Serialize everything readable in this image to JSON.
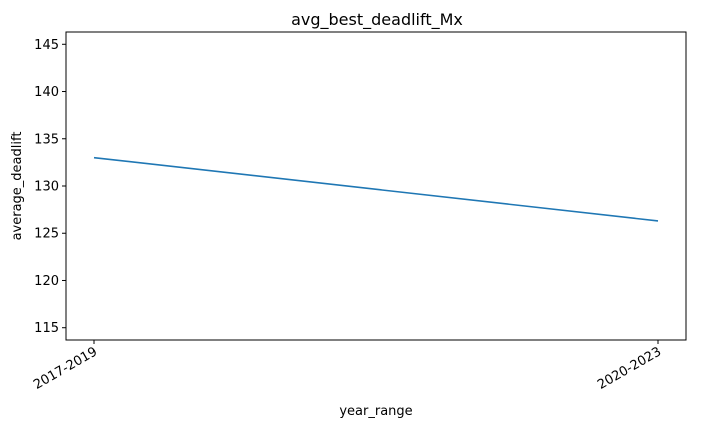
{
  "chart_data": {
    "type": "line",
    "title": "avg_best_deadlift_Mx",
    "xlabel": "year_range",
    "ylabel": "average_deadlift",
    "categories": [
      "2017-2019",
      "2020-2023"
    ],
    "series": [
      {
        "values": [
          133.0,
          126.3
        ],
        "color": "#1f77b4"
      }
    ],
    "ylim": [
      113.7,
      146.3
    ],
    "yticks": [
      115,
      120,
      125,
      130,
      135,
      140,
      145
    ],
    "grid": false,
    "legend": "none"
  }
}
